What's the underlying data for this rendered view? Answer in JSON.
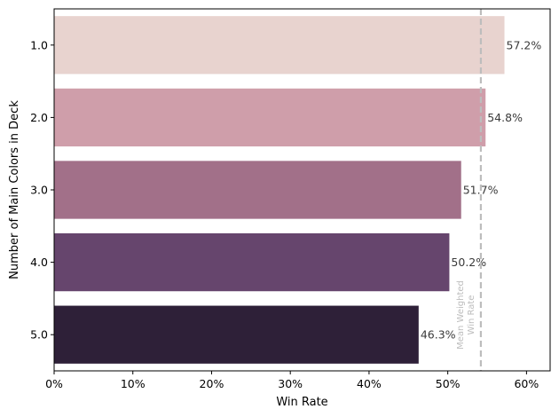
{
  "chart_data": {
    "type": "bar",
    "orientation": "horizontal",
    "categories": [
      "1.0",
      "2.0",
      "3.0",
      "4.0",
      "5.0"
    ],
    "values": [
      57.2,
      54.8,
      51.7,
      50.2,
      46.3
    ],
    "value_labels": [
      "57.2%",
      "54.8%",
      "51.7%",
      "50.2%",
      "46.3%"
    ],
    "colors": [
      "#e8d3cf",
      "#cf9eaa",
      "#a27089",
      "#66456d",
      "#2e2038"
    ],
    "xlabel": "Win Rate",
    "ylabel": "Number of Main Colors in Deck",
    "xlim": [
      0,
      63
    ],
    "xticks": [
      0,
      10,
      20,
      30,
      40,
      50,
      60
    ],
    "xtick_labels": [
      "0%",
      "10%",
      "20%",
      "30%",
      "40%",
      "50%",
      "60%"
    ],
    "reference_line": {
      "value": 54.2,
      "label_line1": "Mean Weighted",
      "label_line2": "Win Rate",
      "color": "#bdbdbd",
      "style": "dashed"
    },
    "grid": false
  }
}
